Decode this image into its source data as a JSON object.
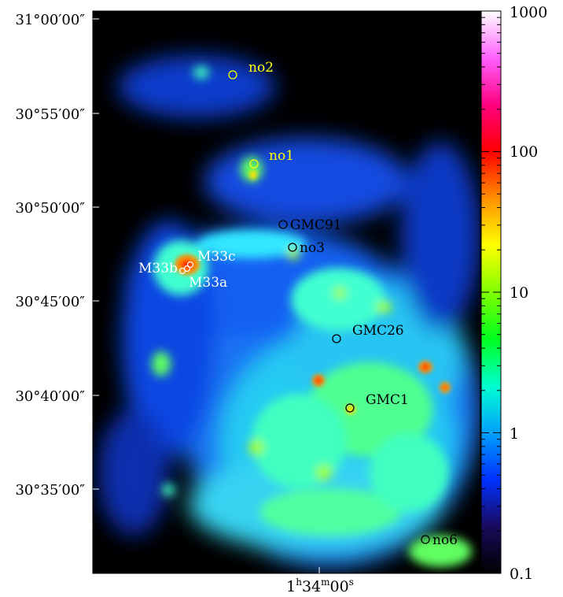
{
  "figure": {
    "y_tick_labels": [
      "31°00′00″",
      "30°55′00″",
      "30°50′00″",
      "30°45′00″",
      "30°40′00″",
      "30°35′00″"
    ],
    "x_tick_label": {
      "main": "1",
      "h": "h",
      "mid": "34",
      "m": "m",
      "sec": "00",
      "s": "s"
    },
    "colorbar": {
      "scale": "log",
      "ticks": [
        "1000",
        "100",
        "10",
        "1",
        "0.1"
      ],
      "colors": [
        "#000000",
        "#1a0a5c",
        "#0030ff",
        "#00a0ff",
        "#00ffd0",
        "#00ff20",
        "#80ff00",
        "#ffff00",
        "#ff9000",
        "#ff0000",
        "#ff0080",
        "#ff60ff",
        "#ffffff"
      ]
    },
    "markers": [
      {
        "label": "no2",
        "color": "#ffff00"
      },
      {
        "label": "no1",
        "color": "#ffff00"
      },
      {
        "label": "GMC91",
        "color": "#000000"
      },
      {
        "label": "no3",
        "color": "#000000"
      },
      {
        "label": "M33c",
        "color": "#ffffff"
      },
      {
        "label": "M33b",
        "color": "#ffffff"
      },
      {
        "label": "M33a",
        "color": "#ffffff"
      },
      {
        "label": "GMC26",
        "color": "#000000"
      },
      {
        "label": "GMC1",
        "color": "#000000"
      },
      {
        "label": "no6",
        "color": "#000000"
      }
    ]
  }
}
